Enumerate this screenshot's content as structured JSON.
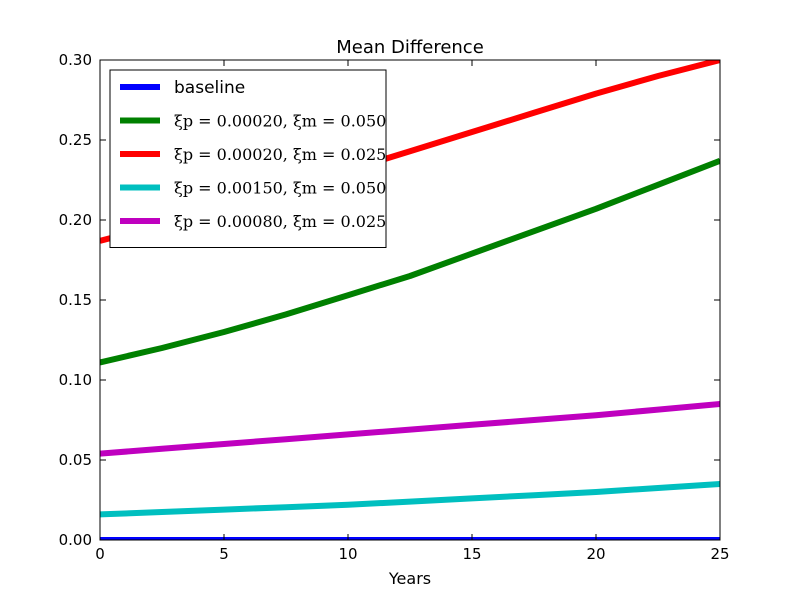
{
  "chart_data": {
    "type": "line",
    "title": "Mean Difference",
    "xlabel": "Years",
    "ylabel": "",
    "xlim": [
      0,
      25
    ],
    "ylim": [
      0,
      0.3
    ],
    "xticks": [
      0,
      5,
      10,
      15,
      20,
      25
    ],
    "xtick_labels": [
      "0",
      "5",
      "10",
      "15",
      "20",
      "25"
    ],
    "yticks": [
      0,
      0.05,
      0.1,
      0.15,
      0.2,
      0.25,
      0.3
    ],
    "ytick_labels": [
      "0.00",
      "0.05",
      "0.10",
      "0.15",
      "0.20",
      "0.25",
      "0.30"
    ],
    "grid": false,
    "legend_position": "upper-left",
    "x": [
      0,
      2.5,
      5,
      7.5,
      10,
      12.5,
      15,
      17.5,
      20,
      22.5,
      25
    ],
    "series": [
      {
        "name": "baseline",
        "color": "#0000ff",
        "values": [
          0,
          0,
          0,
          0,
          0,
          0,
          0,
          0,
          0,
          0,
          0
        ]
      },
      {
        "name": "ξp = 0.00020, ξm = 0.050",
        "color": "#008000",
        "values": [
          0.111,
          0.12,
          0.13,
          0.141,
          0.153,
          0.165,
          0.179,
          0.193,
          0.207,
          0.222,
          0.237
        ]
      },
      {
        "name": "ξp = 0.00020, ξm = 0.025",
        "color": "#ff0000",
        "values": [
          0.187,
          0.197,
          0.208,
          0.219,
          0.231,
          0.243,
          0.255,
          0.267,
          0.279,
          0.29,
          0.3
        ]
      },
      {
        "name": "ξp = 0.00150, ξm = 0.050",
        "color": "#00bfbf",
        "values": [
          0.016,
          0.0175,
          0.019,
          0.0205,
          0.022,
          0.024,
          0.026,
          0.028,
          0.03,
          0.0325,
          0.035
        ]
      },
      {
        "name": "ξp = 0.00080, ξm = 0.025",
        "color": "#bf00bf",
        "values": [
          0.054,
          0.057,
          0.06,
          0.063,
          0.066,
          0.069,
          0.072,
          0.075,
          0.078,
          0.0815,
          0.085
        ]
      }
    ]
  }
}
